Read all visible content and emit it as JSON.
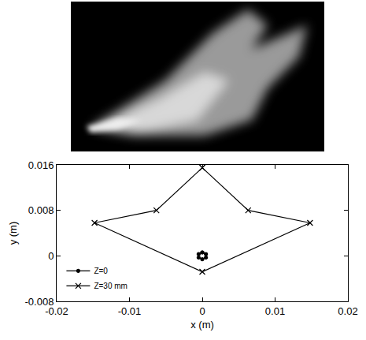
{
  "chart_data": {
    "type": "line",
    "x_label": "x (m)",
    "y_label": "y (m)",
    "xlim": [
      -0.02,
      0.02
    ],
    "xticks": [
      -0.02,
      -0.01,
      0,
      0.01,
      0.02
    ],
    "ylim": [
      -0.008,
      0.016
    ],
    "yticks": [
      -0.008,
      0,
      0.008,
      0.016
    ],
    "grid": false,
    "legend": "lower left",
    "series": [
      {
        "name": "Z=0",
        "color": "#000000",
        "marker": "circle",
        "line_style": "solid",
        "x": [
          0,
          0.0005,
          0.0005,
          0,
          -0.0005,
          -0.0005,
          0
        ],
        "values": [
          0.0006,
          0.0003,
          -0.0003,
          -0.0006,
          -0.0003,
          0.0003,
          0.0006
        ]
      },
      {
        "name": "Z=30 mm",
        "color": "#000000",
        "marker": "x",
        "line_style": "solid",
        "x": [
          0,
          0.0063,
          0.0148,
          0,
          -0.0148,
          -0.0063,
          0
        ],
        "values": [
          0.0155,
          0.008,
          0.0058,
          -0.0028,
          0.0058,
          0.008,
          0.0155
        ]
      }
    ]
  }
}
